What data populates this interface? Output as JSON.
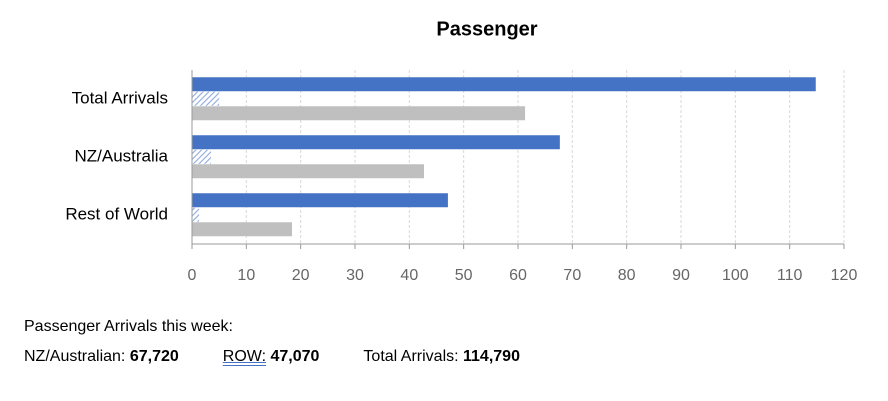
{
  "chart_data": {
    "type": "hbar",
    "title": "Passenger",
    "categories": [
      "Total Arrivals",
      "NZ/Australia",
      "Rest of World"
    ],
    "series": [
      {
        "color": "#4472c4",
        "values": [
          114.8,
          67.7,
          47.1
        ]
      },
      {
        "color": "#8faadc",
        "hatch": true,
        "values": [
          5,
          3.5,
          1.3
        ]
      },
      {
        "color": "#bfbfbf",
        "values": [
          61.3,
          42.7,
          18.4
        ]
      }
    ],
    "xlim": [
      0,
      120
    ],
    "xticks": [
      0,
      10,
      20,
      30,
      40,
      50,
      60,
      70,
      80,
      90,
      100,
      110,
      120
    ],
    "grid": true
  },
  "footer": {
    "heading": "Passenger Arrivals this week:",
    "items": [
      {
        "label": "NZ/Australian:",
        "value": "67,720"
      },
      {
        "label": "ROW:",
        "value": "47,070",
        "underline": true
      },
      {
        "label": "Total Arrivals:",
        "value": "114,790"
      }
    ]
  }
}
